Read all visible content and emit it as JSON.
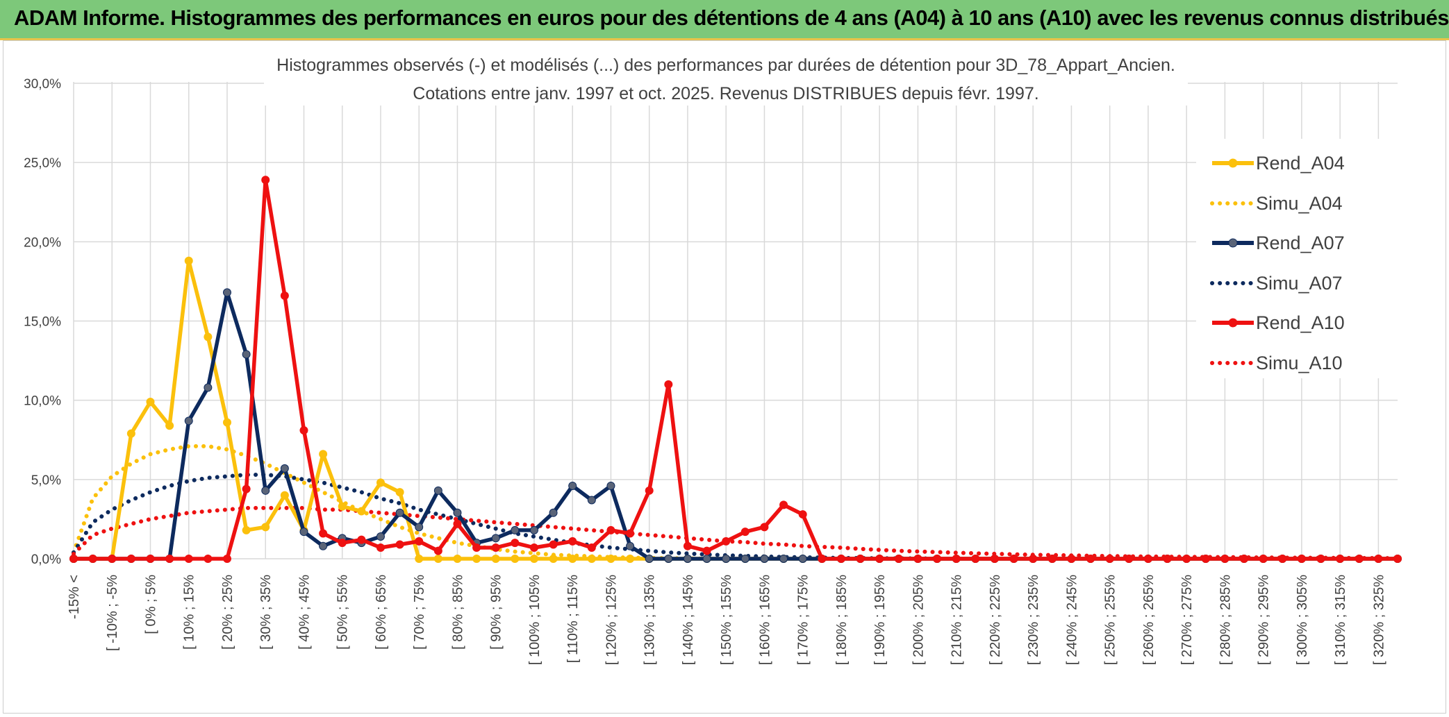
{
  "banner": {
    "title": "ADAM Informe. Histogrammes des performances en euros pour des détentions de 4 ans (A04) à 10 ans (A10) avec les revenus connus distribués"
  },
  "colors": {
    "banner": "#7dc87a",
    "banner_border": "#e8c34a",
    "a04": "#fbc00c",
    "a07": "#0d2a5e",
    "a07_marker": "#5a6478",
    "a10": "#ee1111",
    "grid": "#d9d9d9",
    "text": "#404040"
  },
  "chart_data": {
    "type": "line",
    "title_lines": [
      "Histogrammes observés (-) et modélisés (...) des performances par durées de détention pour 3D_78_Appart_Ancien.",
      "Cotations entre janv. 1997 et oct. 2025. Revenus DISTRIBUES depuis févr. 1997."
    ],
    "ylim": [
      0,
      30
    ],
    "ytick_values": [
      0,
      5,
      10,
      15,
      20,
      25,
      30
    ],
    "ytick_labels": [
      "0,0%",
      "5,0%",
      "10,0%",
      "15,0%",
      "20,0%",
      "25,0%",
      "30,0%"
    ],
    "x_labels": [
      "-15% <",
      "[ -10% ; -5%",
      "[ 0% ; 5%",
      "[ 10% ; 15%",
      "[ 20% ; 25%",
      "[ 30% ; 35%",
      "[ 40% ; 45%",
      "[ 50% ; 55%",
      "[ 60% ; 65%",
      "[ 70% ; 75%",
      "[ 80% ; 85%",
      "[ 90% ; 95%",
      "[ 100% ; 105%",
      "[ 110% ; 115%",
      "[ 120% ; 125%",
      "[ 130% ; 135%",
      "[ 140% ; 145%",
      "[ 150% ; 155%",
      "[ 160% ; 165%",
      "[ 170% ; 175%",
      "[ 180% ; 185%",
      "[ 190% ; 195%",
      "[ 200% ; 205%",
      "[ 210% ; 215%",
      "[ 220% ; 225%",
      "[ 230% ; 235%",
      "[ 240% ; 245%",
      "[ 250% ; 255%",
      "[ 260% ; 265%",
      "[ 270% ; 275%",
      "[ 280% ; 285%",
      "[ 290% ; 295%",
      "[ 300% ; 305%",
      "[ 310% ; 315%",
      "[ 320% ; 325%"
    ],
    "x_count": 70,
    "series": [
      {
        "name": "Rend_A04",
        "style": "solid",
        "color": "#fbc00c",
        "marker_color": "#fbc00c",
        "values": [
          0,
          0,
          0,
          7.9,
          9.9,
          8.4,
          18.8,
          14.0,
          8.6,
          1.8,
          2.0,
          4.0,
          1.8,
          6.6,
          3.3,
          3.0,
          4.8,
          4.2,
          0,
          0,
          0,
          0,
          0,
          0,
          0,
          0,
          0,
          0,
          0,
          0,
          0,
          0,
          0,
          0,
          0,
          0,
          0,
          0,
          0,
          0,
          0,
          0,
          0,
          0,
          0,
          0,
          0,
          0,
          0,
          0,
          0,
          0,
          0,
          0,
          0,
          0,
          0,
          0,
          0,
          0,
          0,
          0,
          0,
          0,
          0,
          0,
          0,
          0,
          0,
          0
        ]
      },
      {
        "name": "Simu_A04",
        "style": "dotted",
        "color": "#fbc00c",
        "values": [
          0.4,
          3.8,
          5.2,
          6.0,
          6.6,
          6.9,
          7.1,
          7.1,
          6.9,
          6.5,
          6.0,
          5.4,
          4.8,
          4.2,
          3.6,
          3.0,
          2.5,
          2.0,
          1.6,
          1.3,
          1.0,
          0.8,
          0.6,
          0.45,
          0.35,
          0.25,
          0.2,
          0.15,
          0.1,
          0.07,
          0.05,
          0.03,
          0.02,
          0.01
        ]
      },
      {
        "name": "Rend_A07",
        "style": "solid",
        "color": "#0d2a5e",
        "marker_color": "#5a6478",
        "values": [
          0,
          0,
          0,
          0,
          0,
          0,
          8.7,
          10.8,
          16.8,
          12.9,
          4.3,
          5.7,
          1.7,
          0.8,
          1.3,
          1.0,
          1.4,
          2.9,
          2.0,
          4.3,
          2.9,
          1.0,
          1.3,
          1.8,
          1.8,
          2.9,
          4.6,
          3.7,
          4.6,
          0.8,
          0,
          0,
          0,
          0,
          0,
          0,
          0,
          0,
          0,
          0,
          0,
          0,
          0,
          0,
          0,
          0,
          0,
          0,
          0,
          0,
          0,
          0,
          0,
          0,
          0,
          0,
          0,
          0,
          0,
          0,
          0,
          0,
          0,
          0,
          0,
          0,
          0,
          0,
          0,
          0
        ]
      },
      {
        "name": "Simu_A07",
        "style": "dotted",
        "color": "#0d2a5e",
        "values": [
          0.4,
          2.3,
          3.1,
          3.7,
          4.2,
          4.6,
          4.9,
          5.1,
          5.2,
          5.3,
          5.3,
          5.2,
          5.0,
          4.8,
          4.5,
          4.2,
          3.8,
          3.5,
          3.1,
          2.8,
          2.5,
          2.2,
          1.9,
          1.6,
          1.4,
          1.2,
          1.0,
          0.85,
          0.7,
          0.6,
          0.5,
          0.4,
          0.33,
          0.27,
          0.22,
          0.18,
          0.14,
          0.11,
          0.09,
          0.07,
          0.05,
          0.04,
          0.03,
          0.02,
          0.02,
          0.01
        ]
      },
      {
        "name": "Rend_A10",
        "style": "solid",
        "color": "#ee1111",
        "marker_color": "#ee1111",
        "values": [
          0,
          0,
          0,
          0,
          0,
          0,
          0,
          0,
          0,
          4.4,
          23.9,
          16.6,
          8.1,
          1.6,
          1.0,
          1.2,
          0.7,
          0.9,
          1.1,
          0.5,
          2.2,
          0.7,
          0.7,
          1.0,
          0.7,
          0.9,
          1.1,
          0.7,
          1.8,
          1.6,
          4.3,
          11.0,
          0.8,
          0.5,
          1.1,
          1.7,
          2.0,
          3.4,
          2.8,
          0,
          0,
          0,
          0,
          0,
          0,
          0,
          0,
          0,
          0,
          0,
          0,
          0,
          0,
          0,
          0,
          0,
          0,
          0,
          0,
          0,
          0,
          0,
          0,
          0,
          0,
          0,
          0,
          0,
          0,
          0
        ]
      },
      {
        "name": "Simu_A10",
        "style": "dotted",
        "color": "#ee1111",
        "values": [
          0.3,
          1.5,
          1.9,
          2.2,
          2.5,
          2.7,
          2.9,
          3.0,
          3.1,
          3.2,
          3.2,
          3.2,
          3.2,
          3.1,
          3.1,
          3.0,
          2.9,
          2.8,
          2.7,
          2.6,
          2.5,
          2.4,
          2.3,
          2.2,
          2.1,
          2.0,
          1.9,
          1.8,
          1.7,
          1.6,
          1.5,
          1.4,
          1.3,
          1.2,
          1.1,
          1.05,
          0.95,
          0.9,
          0.8,
          0.75,
          0.7,
          0.62,
          0.56,
          0.5,
          0.46,
          0.42,
          0.38,
          0.34,
          0.31,
          0.28,
          0.25,
          0.23,
          0.21,
          0.19,
          0.17,
          0.15,
          0.14,
          0.13,
          0.12,
          0.11,
          0.1,
          0.09,
          0.08,
          0.07,
          0.06,
          0.06,
          0.05,
          0.05,
          0.04,
          0.04
        ]
      }
    ],
    "legend": {
      "position": "right",
      "entries": [
        "Rend_A04",
        "Simu_A04",
        "Rend_A07",
        "Simu_A07",
        "Rend_A10",
        "Simu_A10"
      ]
    }
  }
}
